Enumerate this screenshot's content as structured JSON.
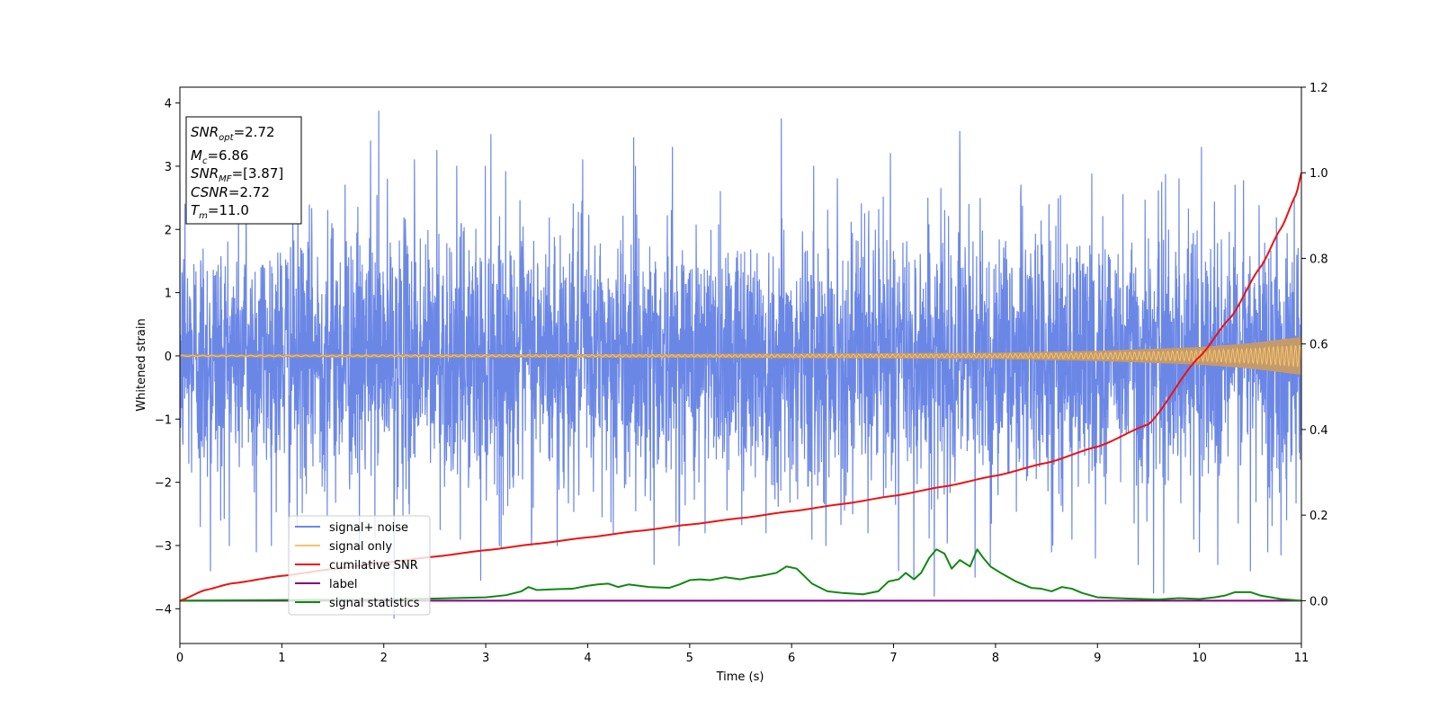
{
  "chart_data": {
    "type": "line",
    "xlabel": "Time (s)",
    "ylabel": "Whitened strain",
    "xlim": [
      0,
      11
    ],
    "ylim": [
      -4.55,
      4.25
    ],
    "y2lim": [
      -0.1,
      1.2
    ],
    "x_ticks": [
      0,
      1,
      2,
      3,
      4,
      5,
      6,
      7,
      8,
      9,
      10,
      11
    ],
    "y_ticks": [
      -4,
      -3,
      -2,
      -1,
      0,
      1,
      2,
      3,
      4
    ],
    "y2_ticks": [
      0.0,
      0.2,
      0.4,
      0.6,
      0.8,
      1.0,
      1.2
    ],
    "grid": false,
    "legend_position": "lower-left",
    "colors": {
      "noise": "#6b87e6",
      "signal": "#f5c46a",
      "signal_envelope": "#c49a6c",
      "cumulative_snr": "#ee1111",
      "label": "#800080",
      "statistics": "#118811"
    },
    "annotations": {
      "snr_opt": {
        "sym": "SNR",
        "sub": "opt",
        "val": "=2.72"
      },
      "mc": {
        "sym": "M",
        "sub": "c",
        "val": "=6.86"
      },
      "snr_mf": {
        "sym": "SNR",
        "sub": "MF",
        "val": "=[3.87]"
      },
      "csnr": {
        "sym": "CSNR",
        "sub": "",
        "val": "=2.72"
      },
      "tm": {
        "sym": "T",
        "sub": "m",
        "val": "=11.0"
      }
    },
    "series": [
      {
        "name": "signal+ noise",
        "kind": "noise",
        "axis": "left",
        "amplitude_sigma": 1.0,
        "peaks": [
          [
            0.05,
            2.4
          ],
          [
            0.2,
            -2.7
          ],
          [
            0.3,
            -3.4
          ],
          [
            0.4,
            -2.6
          ],
          [
            0.65,
            2.8
          ],
          [
            0.75,
            -3.1
          ],
          [
            1.07,
            -2.9
          ],
          [
            1.15,
            -2.7
          ],
          [
            1.45,
            2.3
          ],
          [
            1.62,
            2.7
          ],
          [
            1.76,
            -3.1
          ],
          [
            1.87,
            3.4
          ],
          [
            1.95,
            3.87
          ],
          [
            2.1,
            -4.15
          ],
          [
            2.25,
            -2.5
          ],
          [
            2.3,
            3.1
          ],
          [
            2.52,
            3.25
          ],
          [
            2.75,
            -2.9
          ],
          [
            2.95,
            -3.55
          ],
          [
            3.05,
            3.5
          ],
          [
            3.15,
            -3.05
          ],
          [
            3.45,
            -2.8
          ],
          [
            3.7,
            -3.0
          ],
          [
            3.95,
            3.1
          ],
          [
            4.25,
            -2.8
          ],
          [
            4.45,
            3.45
          ],
          [
            4.65,
            -3.3
          ],
          [
            4.83,
            3.3
          ],
          [
            5.15,
            -2.8
          ],
          [
            5.3,
            2.6
          ],
          [
            5.75,
            -2.8
          ],
          [
            5.9,
            3.75
          ],
          [
            6.2,
            -2.9
          ],
          [
            6.45,
            2.8
          ],
          [
            6.6,
            -2.5
          ],
          [
            6.75,
            -2.8
          ],
          [
            6.97,
            3.2
          ],
          [
            7.05,
            -3.4
          ],
          [
            7.2,
            -3.5
          ],
          [
            7.4,
            -3.8
          ],
          [
            7.65,
            3.55
          ],
          [
            7.8,
            -3.5
          ],
          [
            7.95,
            -3.3
          ],
          [
            8.25,
            2.7
          ],
          [
            8.55,
            -3.1
          ],
          [
            8.75,
            -2.9
          ],
          [
            8.98,
            -3.2
          ],
          [
            9.25,
            2.55
          ],
          [
            9.4,
            -3.3
          ],
          [
            9.55,
            -3.75
          ],
          [
            9.65,
            -3.75
          ],
          [
            9.8,
            2.8
          ],
          [
            10.0,
            -3.1
          ],
          [
            10.02,
            3.3
          ],
          [
            10.18,
            -3.3
          ],
          [
            10.35,
            2.7
          ],
          [
            10.5,
            -3.4
          ],
          [
            10.67,
            -3.1
          ],
          [
            10.8,
            -3.15
          ],
          [
            10.93,
            2.5
          ]
        ]
      },
      {
        "name": "signal only",
        "kind": "chirp",
        "axis": "left",
        "envelope": [
          [
            0,
            0.02
          ],
          [
            5,
            0.03
          ],
          [
            8,
            0.05
          ],
          [
            9,
            0.08
          ],
          [
            10,
            0.14
          ],
          [
            10.5,
            0.2
          ],
          [
            11,
            0.3
          ]
        ]
      },
      {
        "name": "cumilative SNR",
        "kind": "line",
        "axis": "right",
        "x": [
          0,
          0.25,
          0.5,
          1,
          1.5,
          2,
          2.5,
          3,
          3.5,
          4,
          4.5,
          5,
          5.5,
          6,
          6.5,
          7,
          7.5,
          8,
          8.5,
          9,
          9.5,
          10,
          10.3,
          10.6,
          10.8,
          10.95,
          11
        ],
        "values": [
          0.0,
          0.025,
          0.04,
          0.058,
          0.074,
          0.089,
          0.103,
          0.118,
          0.133,
          0.148,
          0.163,
          0.178,
          0.193,
          0.209,
          0.226,
          0.245,
          0.267,
          0.292,
          0.322,
          0.36,
          0.412,
          0.57,
          0.66,
          0.78,
          0.87,
          0.95,
          1.0
        ]
      },
      {
        "name": "label",
        "kind": "line",
        "axis": "right",
        "x": [
          0,
          11
        ],
        "values": [
          0,
          0
        ]
      },
      {
        "name": "signal statistics",
        "kind": "line",
        "axis": "right",
        "x": [
          0,
          2.0,
          2.5,
          3.0,
          3.2,
          3.35,
          3.42,
          3.5,
          3.7,
          3.85,
          4.0,
          4.1,
          4.2,
          4.3,
          4.4,
          4.6,
          4.8,
          4.9,
          5.0,
          5.1,
          5.2,
          5.35,
          5.5,
          5.6,
          5.7,
          5.85,
          5.95,
          6.05,
          6.2,
          6.35,
          6.5,
          6.7,
          6.85,
          6.95,
          7.05,
          7.12,
          7.2,
          7.27,
          7.35,
          7.42,
          7.5,
          7.57,
          7.65,
          7.75,
          7.82,
          7.88,
          7.95,
          8.05,
          8.2,
          8.35,
          8.45,
          8.55,
          8.65,
          8.75,
          8.85,
          9.0,
          9.3,
          9.6,
          9.8,
          10.0,
          10.15,
          10.25,
          10.35,
          10.5,
          10.6,
          10.8,
          11.0
        ],
        "values": [
          0.0,
          0.003,
          0.005,
          0.008,
          0.013,
          0.022,
          0.032,
          0.025,
          0.027,
          0.028,
          0.035,
          0.038,
          0.04,
          0.032,
          0.038,
          0.032,
          0.03,
          0.038,
          0.048,
          0.05,
          0.048,
          0.055,
          0.05,
          0.055,
          0.058,
          0.065,
          0.08,
          0.075,
          0.04,
          0.022,
          0.018,
          0.015,
          0.022,
          0.045,
          0.05,
          0.065,
          0.05,
          0.065,
          0.1,
          0.12,
          0.11,
          0.075,
          0.095,
          0.08,
          0.12,
          0.1,
          0.08,
          0.065,
          0.045,
          0.03,
          0.028,
          0.022,
          0.032,
          0.028,
          0.018,
          0.008,
          0.005,
          0.003,
          0.006,
          0.004,
          0.008,
          0.012,
          0.02,
          0.02,
          0.012,
          0.004,
          0.0
        ]
      }
    ]
  }
}
